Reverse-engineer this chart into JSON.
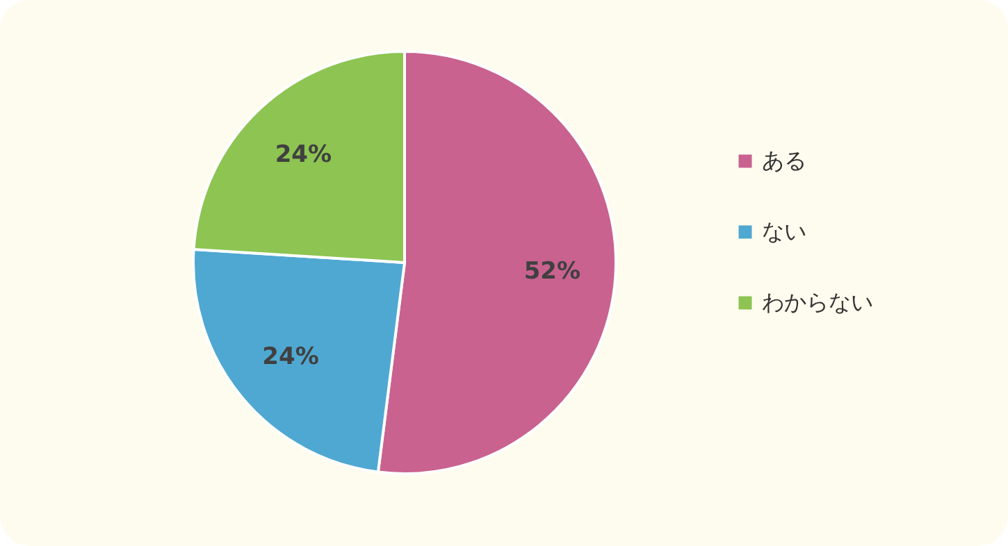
{
  "chart_data": {
    "type": "pie",
    "categories": [
      "ある",
      "ない",
      "わからない"
    ],
    "values": [
      52,
      24,
      24
    ],
    "colors": [
      "#c9628f",
      "#4fa8d2",
      "#8dc452"
    ],
    "value_labels": [
      "52%",
      "24%",
      "24%"
    ],
    "legend": "right"
  }
}
